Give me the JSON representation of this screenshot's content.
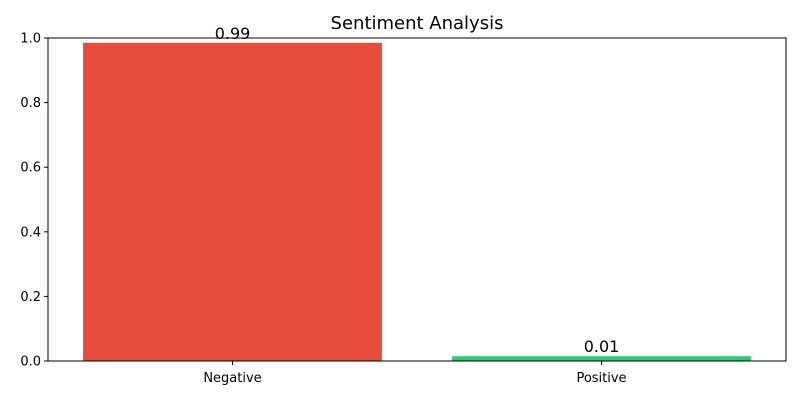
{
  "chart_data": {
    "type": "bar",
    "title": "Sentiment Analysis",
    "xlabel": "",
    "ylabel": "",
    "categories": [
      "Negative",
      "Positive"
    ],
    "values": [
      0.985,
      0.015
    ],
    "value_labels": [
      "0.99",
      "0.01"
    ],
    "colors": [
      "#e74c3c",
      "#2ecc71"
    ],
    "ylim": [
      0,
      1.0
    ],
    "yticks": [
      0.0,
      0.2,
      0.4,
      0.6,
      0.8,
      1.0
    ],
    "ytick_labels": [
      "0.0",
      "0.2",
      "0.4",
      "0.6",
      "0.8",
      "1.0"
    ],
    "grid": false,
    "legend": "none"
  }
}
